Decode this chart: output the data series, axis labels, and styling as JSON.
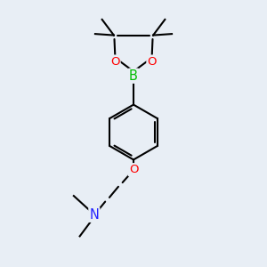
{
  "bg_color": "#e8eef5",
  "bond_color": "#000000",
  "bond_width": 1.5,
  "atom_colors": {
    "B": "#00bb00",
    "O": "#ff0000",
    "N": "#2222ff",
    "C": "#000000"
  },
  "font_size": 9.5
}
